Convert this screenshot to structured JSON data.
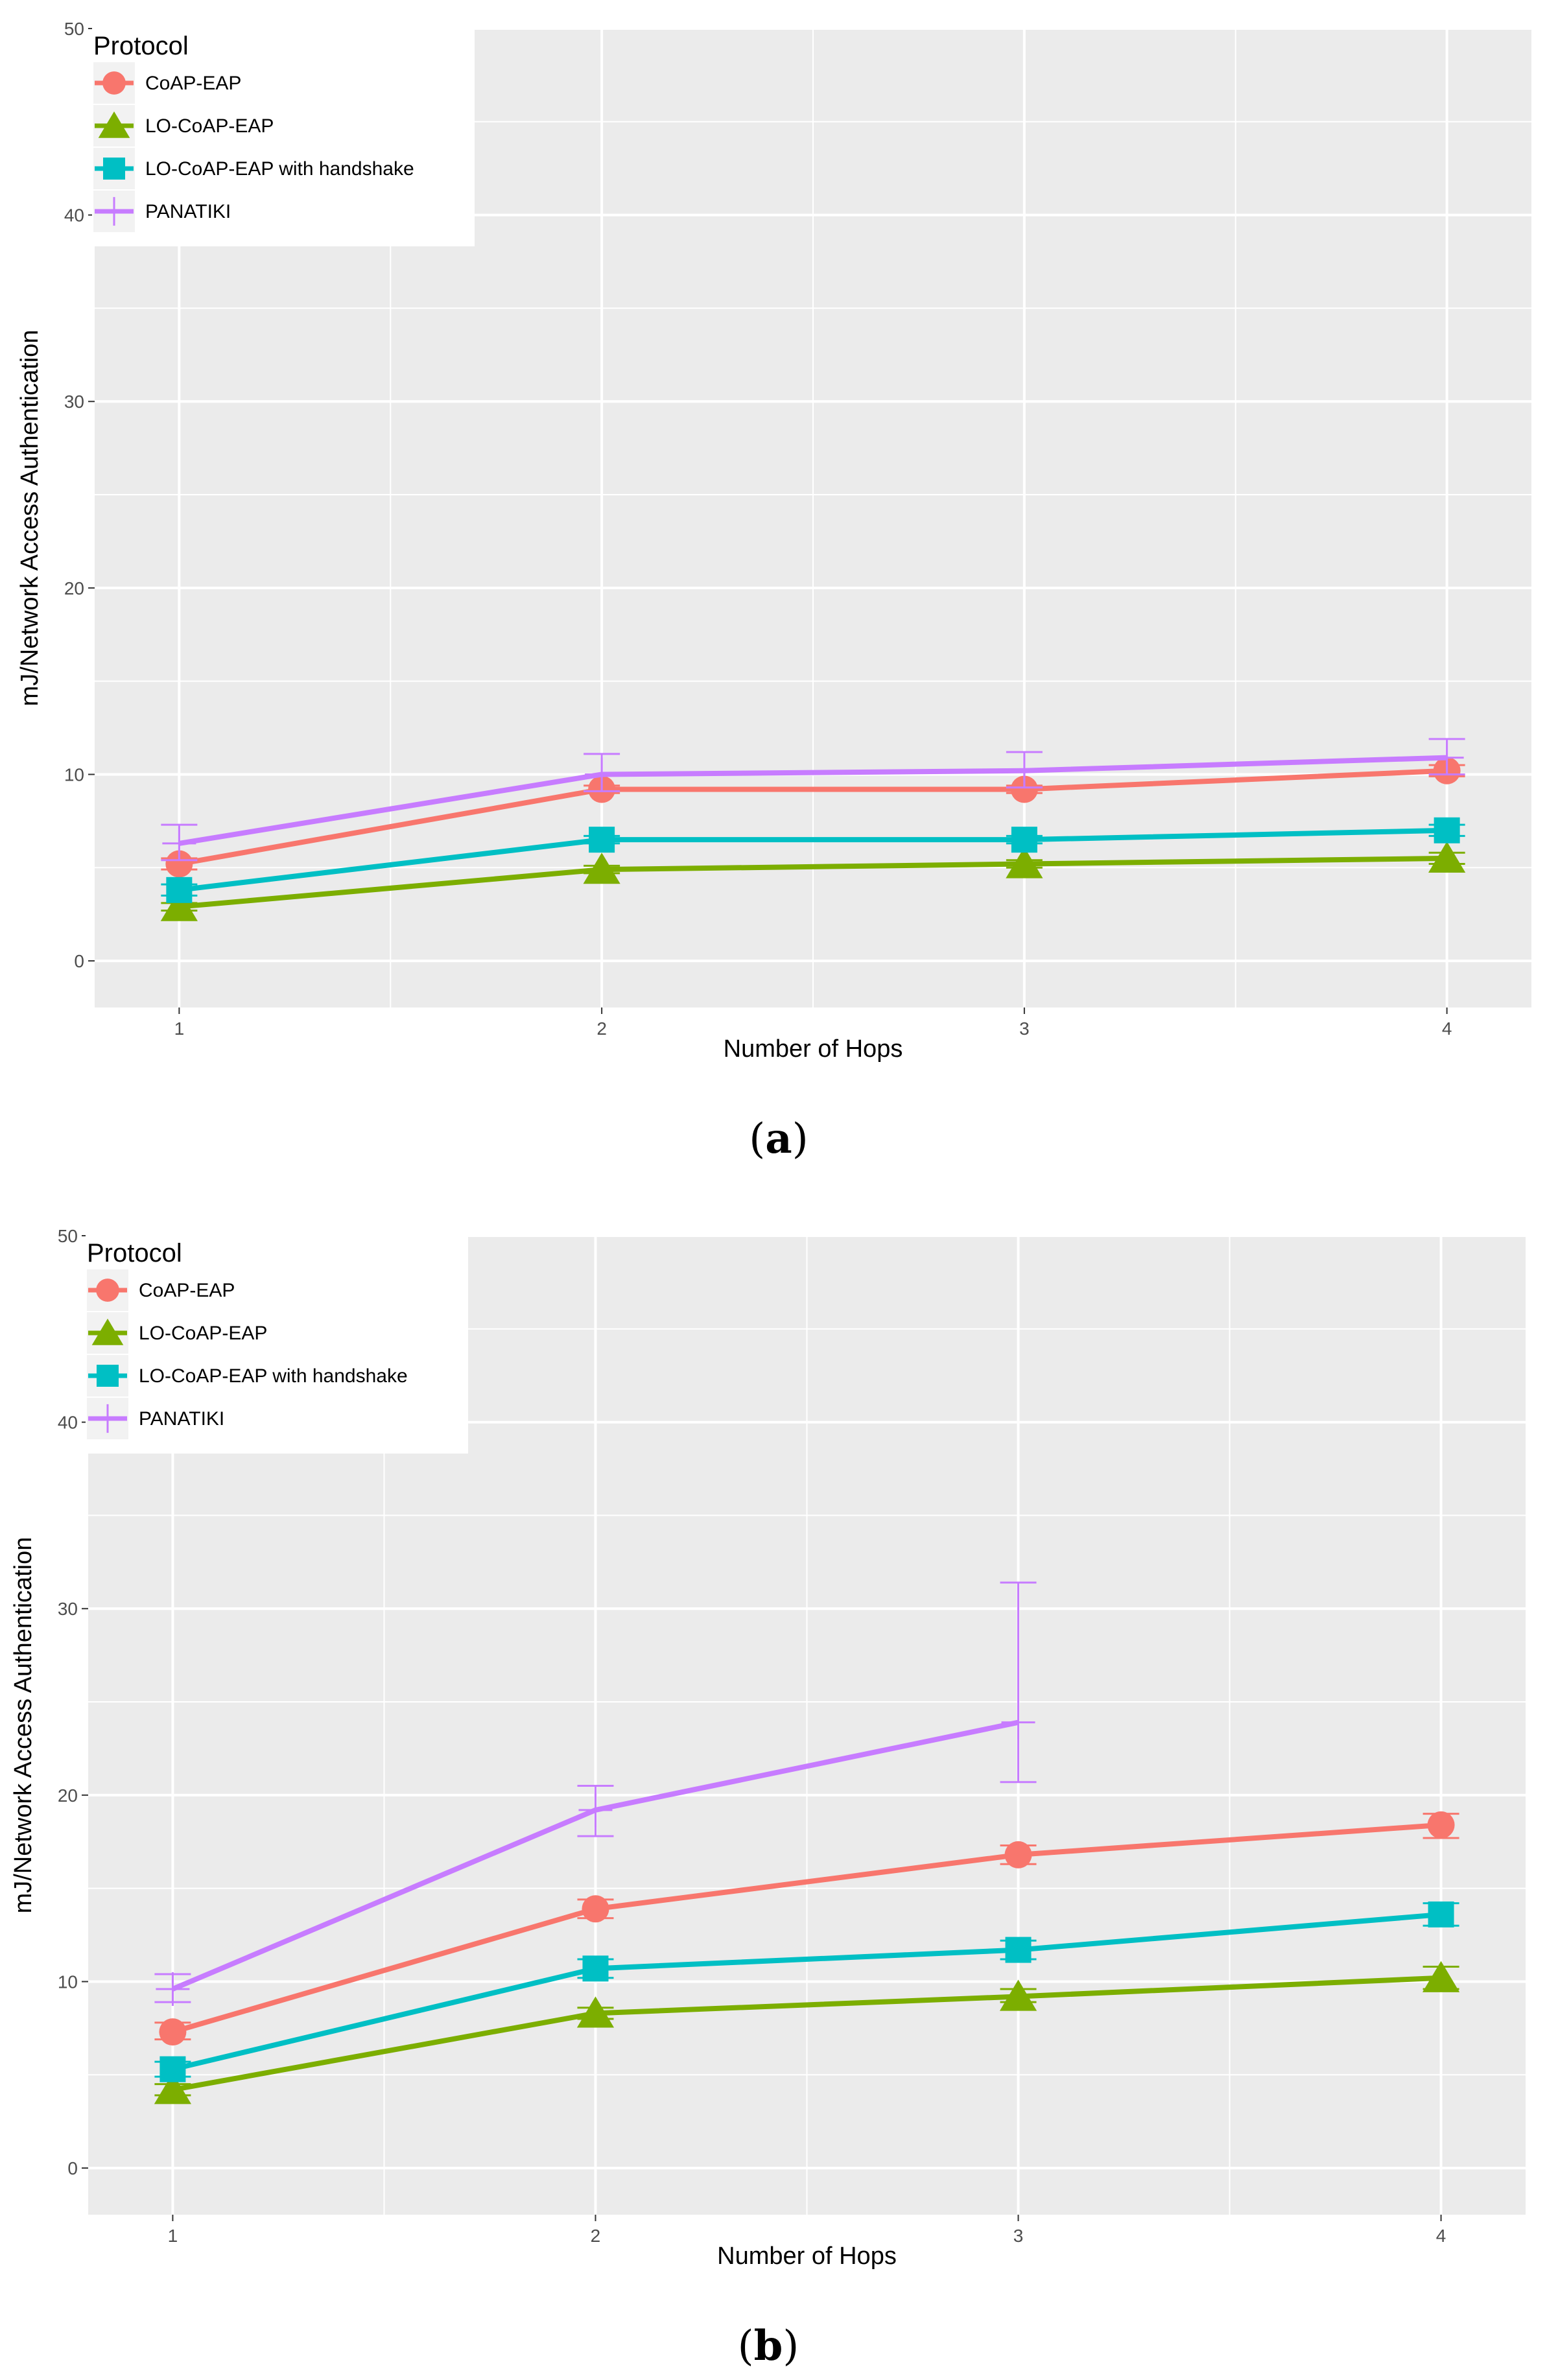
{
  "colors": {
    "panel_bg": "#ebebeb",
    "grid": "#ffffff",
    "coap_eap": "#f8766d",
    "lo_coap_eap": "#7cae00",
    "lo_coap_eap_handshake": "#00bfc4",
    "panatiki": "#c77cff"
  },
  "chart_data": [
    {
      "type": "line",
      "caption_letter": "a",
      "xlabel": "Number of Hops",
      "ylabel": "mJ/Network Access Authentication",
      "legend_title": "Protocol",
      "legend_position": "top-left",
      "grid": true,
      "x": [
        1,
        2,
        3,
        4
      ],
      "xlim": [
        0.8,
        4.2
      ],
      "ylim": [
        -2.5,
        50
      ],
      "xticks": [
        "1",
        "2",
        "3",
        "4"
      ],
      "yticks": [
        "0",
        "10",
        "20",
        "30",
        "40",
        "50"
      ],
      "series": [
        {
          "name": "CoAP-EAP",
          "key": "coap_eap",
          "marker": "circle",
          "values": [
            5.2,
            9.2,
            9.2,
            10.2
          ],
          "err_low": [
            4.9,
            9.0,
            9.0,
            9.9
          ],
          "err_high": [
            5.5,
            9.4,
            9.4,
            10.5
          ]
        },
        {
          "name": "LO-CoAP-EAP",
          "key": "lo_coap_eap",
          "marker": "triangle",
          "values": [
            2.9,
            4.9,
            5.2,
            5.5
          ],
          "err_low": [
            2.7,
            4.7,
            5.0,
            5.2
          ],
          "err_high": [
            3.1,
            5.1,
            5.4,
            5.8
          ]
        },
        {
          "name": "LO-CoAP-EAP with handshake",
          "key": "lo_coap_eap_handshake",
          "marker": "square",
          "values": [
            3.8,
            6.5,
            6.5,
            7.0
          ],
          "err_low": [
            3.5,
            6.3,
            6.3,
            6.7
          ],
          "err_high": [
            4.1,
            6.7,
            6.7,
            7.3
          ]
        },
        {
          "name": "PANATIKI",
          "key": "panatiki",
          "marker": "plus",
          "values": [
            6.3,
            10.0,
            10.2,
            10.9
          ],
          "err_low": [
            5.4,
            9.1,
            9.3,
            10.0
          ],
          "err_high": [
            7.3,
            11.1,
            11.2,
            11.9
          ]
        }
      ]
    },
    {
      "type": "line",
      "caption_letter": "b",
      "xlabel": "Number of Hops",
      "ylabel": "mJ/Network Access Authentication",
      "legend_title": "Protocol",
      "legend_position": "top-left",
      "grid": true,
      "x": [
        1,
        2,
        3,
        4
      ],
      "xlim": [
        0.8,
        4.2
      ],
      "ylim": [
        -2.5,
        50
      ],
      "xticks": [
        "1",
        "2",
        "3",
        "4"
      ],
      "yticks": [
        "0",
        "10",
        "20",
        "30",
        "40",
        "50"
      ],
      "series": [
        {
          "name": "CoAP-EAP",
          "key": "coap_eap",
          "marker": "circle",
          "values": [
            7.3,
            13.9,
            16.8,
            18.4
          ],
          "err_low": [
            6.9,
            13.4,
            16.3,
            17.7
          ],
          "err_high": [
            7.8,
            14.4,
            17.3,
            19.0
          ]
        },
        {
          "name": "LO-CoAP-EAP",
          "key": "lo_coap_eap",
          "marker": "triangle",
          "values": [
            4.2,
            8.3,
            9.2,
            10.2
          ],
          "err_low": [
            3.9,
            8.0,
            8.9,
            9.6
          ],
          "err_high": [
            4.5,
            8.6,
            9.6,
            10.8
          ]
        },
        {
          "name": "LO-CoAP-EAP with handshake",
          "key": "lo_coap_eap_handshake",
          "marker": "square",
          "values": [
            5.3,
            10.7,
            11.7,
            13.6
          ],
          "err_low": [
            4.9,
            10.2,
            11.2,
            13.0
          ],
          "err_high": [
            5.7,
            11.2,
            12.2,
            14.2
          ]
        },
        {
          "name": "PANATIKI",
          "key": "panatiki",
          "marker": "plus",
          "values": [
            9.6,
            19.2,
            23.9,
            null
          ],
          "err_low": [
            8.9,
            17.8,
            20.7,
            null
          ],
          "err_high": [
            10.4,
            20.5,
            31.4,
            null
          ]
        }
      ]
    }
  ]
}
